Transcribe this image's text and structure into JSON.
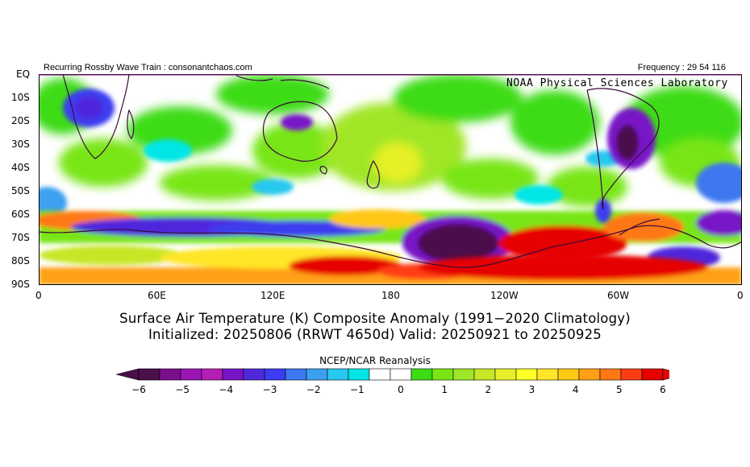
{
  "header": {
    "left_label": "Recurring Rossby Wave Train : consonantchaos.com",
    "right_label": "Frequency : 29 54 116",
    "credit": "NOAA Physical Sciences Laboratory"
  },
  "map": {
    "projection": "equirectangular",
    "lon_range": [
      0,
      360
    ],
    "lat_range": [
      0,
      -90
    ],
    "lat_labels": [
      "EQ",
      "10S",
      "20S",
      "30S",
      "40S",
      "50S",
      "60S",
      "70S",
      "80S",
      "90S"
    ],
    "lon_labels": [
      "0",
      "60E",
      "120E",
      "180",
      "120W",
      "60W",
      "0"
    ],
    "colors": {
      "border": "#5a0a5a",
      "coast": "#3a0a3a"
    }
  },
  "title": {
    "line1": "Surface Air Temperature (K) Composite Anomaly (1991−2020 Climatology)",
    "line2": "Initialized: 20250806 (RRWT 4650d) Valid: 20250921 to 20250925"
  },
  "colorbar": {
    "label": "NCEP/NCAR Reanalysis",
    "tick_labels": [
      "−6",
      "−5",
      "−4",
      "−3",
      "−2",
      "−1",
      "0",
      "1",
      "2",
      "3",
      "4",
      "5",
      "6"
    ],
    "colors": [
      "#4b0f4b",
      "#7a0f8c",
      "#9a14b4",
      "#b41eb4",
      "#7814c8",
      "#5028dc",
      "#3c3cf0",
      "#3c78f0",
      "#3ca0f0",
      "#28c8f0",
      "#00e6e6",
      "#ffffff",
      "#ffffff",
      "#3cdc14",
      "#78e614",
      "#a0e628",
      "#c8e628",
      "#e6f028",
      "#ffff28",
      "#ffe628",
      "#ffc814",
      "#ffa014",
      "#ff7814",
      "#ff3c14",
      "#e60000"
    ]
  }
}
